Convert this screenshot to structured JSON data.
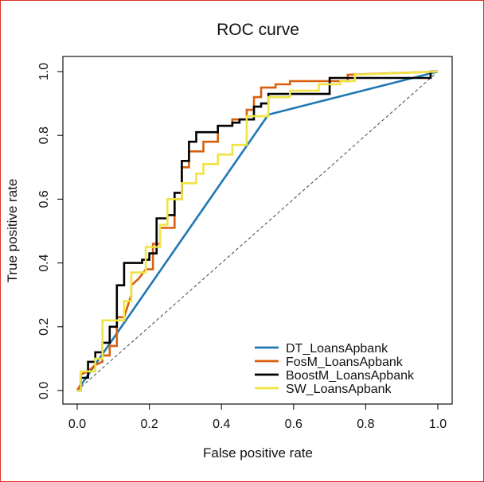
{
  "chart_data": {
    "type": "line",
    "title": "ROC curve",
    "xlabel": "False positive rate",
    "ylabel": "True positive rate",
    "xlim": [
      0,
      1
    ],
    "ylim": [
      0,
      1
    ],
    "x_ticks": [
      "0.0",
      "0.2",
      "0.4",
      "0.6",
      "0.8",
      "1.0"
    ],
    "y_ticks": [
      "0.0",
      "0.2",
      "0.4",
      "0.6",
      "0.8",
      "1.0"
    ],
    "x_tick_values": [
      0,
      0.2,
      0.4,
      0.6,
      0.8,
      1.0
    ],
    "y_tick_values": [
      0,
      0.2,
      0.4,
      0.6,
      0.8,
      1.0
    ],
    "legend_position": "bottom-right",
    "grid": false,
    "diagonal": {
      "x": [
        0,
        1
      ],
      "y": [
        0,
        1
      ],
      "color": "#555555",
      "style": "dashed"
    },
    "series": [
      {
        "name": "DT_LoansApbank",
        "color": "#1f78b4",
        "x": [
          0,
          0.53,
          1.0
        ],
        "y": [
          0,
          0.865,
          1.0
        ]
      },
      {
        "name": "FosM_LoansApbank",
        "color": "#d95f0e",
        "x": [
          0,
          0.01,
          0.01,
          0.03,
          0.05,
          0.07,
          0.07,
          0.09,
          0.09,
          0.11,
          0.11,
          0.13,
          0.15,
          0.15,
          0.17,
          0.19,
          0.21,
          0.21,
          0.23,
          0.23,
          0.25,
          0.27,
          0.27,
          0.29,
          0.29,
          0.31,
          0.31,
          0.35,
          0.35,
          0.39,
          0.39,
          0.43,
          0.43,
          0.47,
          0.47,
          0.49,
          0.49,
          0.51,
          0.51,
          0.55,
          0.55,
          0.59,
          0.59,
          0.75,
          0.75,
          1.0
        ],
        "y": [
          0,
          0.02,
          0.05,
          0.06,
          0.08,
          0.09,
          0.11,
          0.11,
          0.14,
          0.14,
          0.23,
          0.23,
          0.3,
          0.33,
          0.35,
          0.38,
          0.38,
          0.46,
          0.46,
          0.51,
          0.51,
          0.51,
          0.6,
          0.6,
          0.7,
          0.7,
          0.75,
          0.75,
          0.78,
          0.78,
          0.83,
          0.83,
          0.85,
          0.85,
          0.88,
          0.88,
          0.92,
          0.92,
          0.95,
          0.95,
          0.96,
          0.96,
          0.97,
          0.97,
          0.99,
          1.0
        ]
      },
      {
        "name": "BoostM_LoansApbank",
        "color": "#000000",
        "x": [
          0,
          0.01,
          0.01,
          0.03,
          0.03,
          0.05,
          0.05,
          0.07,
          0.07,
          0.09,
          0.09,
          0.11,
          0.11,
          0.13,
          0.13,
          0.18,
          0.18,
          0.2,
          0.2,
          0.22,
          0.22,
          0.25,
          0.25,
          0.27,
          0.27,
          0.29,
          0.29,
          0.31,
          0.31,
          0.33,
          0.33,
          0.39,
          0.39,
          0.43,
          0.43,
          0.45,
          0.45,
          0.49,
          0.49,
          0.51,
          0.51,
          0.53,
          0.53,
          0.7,
          0.7,
          0.98,
          0.98,
          1.0
        ],
        "y": [
          0,
          0,
          0.04,
          0.04,
          0.09,
          0.09,
          0.12,
          0.12,
          0.15,
          0.15,
          0.2,
          0.2,
          0.33,
          0.33,
          0.4,
          0.4,
          0.41,
          0.41,
          0.43,
          0.43,
          0.54,
          0.54,
          0.55,
          0.55,
          0.62,
          0.62,
          0.72,
          0.72,
          0.78,
          0.78,
          0.81,
          0.81,
          0.83,
          0.83,
          0.84,
          0.84,
          0.85,
          0.85,
          0.89,
          0.89,
          0.9,
          0.9,
          0.93,
          0.93,
          0.98,
          0.98,
          1.0,
          1.0
        ]
      },
      {
        "name": "SW_LoansApbank",
        "color": "#f0e442",
        "x": [
          0,
          0.01,
          0.01,
          0.05,
          0.05,
          0.07,
          0.07,
          0.13,
          0.13,
          0.15,
          0.15,
          0.19,
          0.19,
          0.23,
          0.23,
          0.25,
          0.25,
          0.29,
          0.29,
          0.33,
          0.33,
          0.35,
          0.35,
          0.39,
          0.39,
          0.43,
          0.43,
          0.47,
          0.47,
          0.53,
          0.53,
          0.59,
          0.59,
          0.67,
          0.67,
          0.73,
          0.73,
          0.77,
          0.77,
          1.0
        ],
        "y": [
          0,
          0,
          0.06,
          0.06,
          0.1,
          0.1,
          0.22,
          0.22,
          0.28,
          0.28,
          0.37,
          0.37,
          0.45,
          0.45,
          0.52,
          0.52,
          0.6,
          0.6,
          0.65,
          0.65,
          0.68,
          0.68,
          0.71,
          0.71,
          0.74,
          0.74,
          0.77,
          0.77,
          0.86,
          0.86,
          0.92,
          0.92,
          0.94,
          0.94,
          0.96,
          0.96,
          0.97,
          0.97,
          0.99,
          1.0
        ]
      }
    ]
  }
}
